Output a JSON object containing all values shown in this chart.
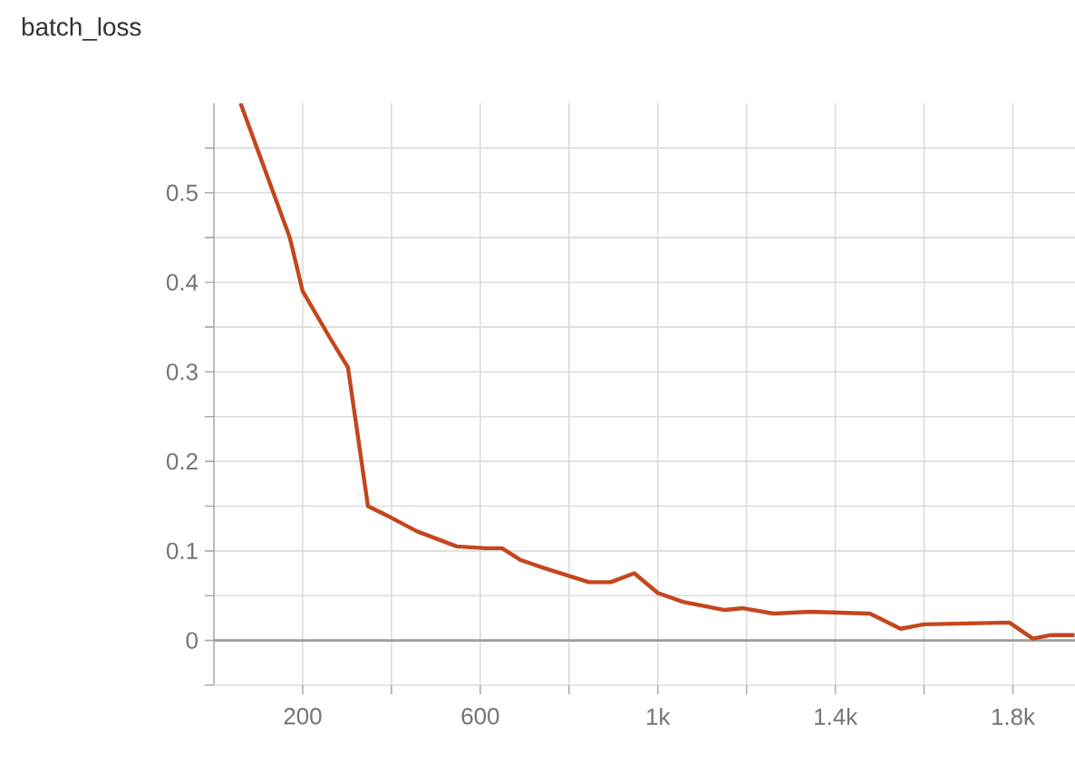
{
  "chart_data": {
    "type": "line",
    "title": "batch_loss",
    "x": [
      60,
      171,
      200,
      265,
      302,
      347,
      396,
      457,
      547,
      612,
      649,
      690,
      743,
      845,
      894,
      947,
      1000,
      1057,
      1151,
      1192,
      1261,
      1343,
      1478,
      1547,
      1600,
      1792,
      1845,
      1886,
      1939
    ],
    "series": [
      {
        "color": "#c4461e",
        "values": [
          0.6,
          0.45,
          0.39,
          0.335,
          0.305,
          0.15,
          0.138,
          0.122,
          0.105,
          0.103,
          0.103,
          0.09,
          0.081,
          0.065,
          0.065,
          0.075,
          0.053,
          0.043,
          0.034,
          0.036,
          0.03,
          0.032,
          0.03,
          0.013,
          0.018,
          0.02,
          0.002,
          0.006,
          0.006
        ]
      }
    ],
    "xlim": [
      0,
      1940
    ],
    "ylim": [
      -0.05,
      0.6
    ],
    "xticks": [
      {
        "value": 200,
        "label": "200"
      },
      {
        "value": 400,
        "label": null
      },
      {
        "value": 600,
        "label": "600"
      },
      {
        "value": 800,
        "label": null
      },
      {
        "value": 1000,
        "label": "1k"
      },
      {
        "value": 1200,
        "label": null
      },
      {
        "value": 1400,
        "label": "1.4k"
      },
      {
        "value": 1600,
        "label": null
      },
      {
        "value": 1800,
        "label": "1.8k"
      }
    ],
    "yticks": [
      {
        "value": -0.05,
        "label": null
      },
      0,
      {
        "value": 0.05,
        "label": null
      },
      0.1,
      {
        "value": 0.15,
        "label": null
      },
      0.2,
      {
        "value": 0.25,
        "label": null
      },
      0.3,
      {
        "value": 0.35,
        "label": null
      },
      0.4,
      {
        "value": 0.45,
        "label": null
      },
      0.5,
      {
        "value": 0.55,
        "label": null
      }
    ],
    "ref_lines": [
      {
        "axis": "y",
        "value": 0,
        "color": "#9e9e9e"
      }
    ],
    "grid": true,
    "marker": "none",
    "line_style": "solid"
  }
}
